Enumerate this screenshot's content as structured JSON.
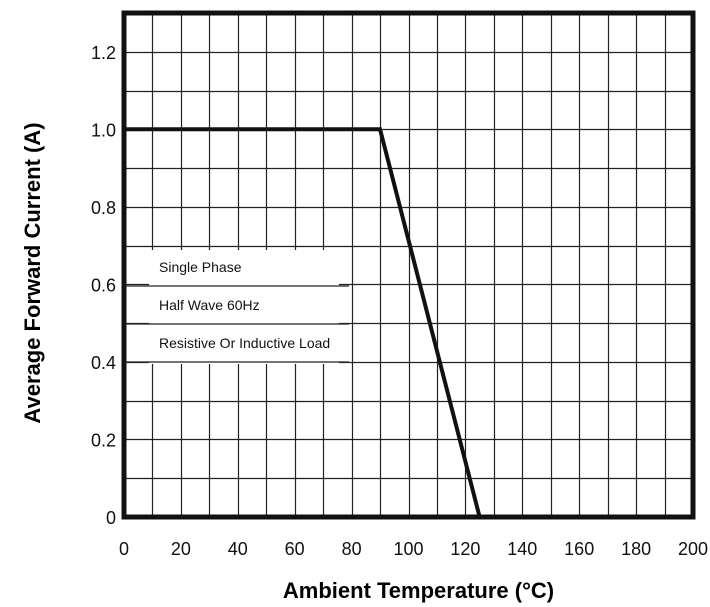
{
  "chart_data": {
    "type": "line",
    "title": "",
    "xlabel": "Ambient Temperature (°C)",
    "ylabel": "Average Forward Current (A)",
    "xlim": [
      0,
      200
    ],
    "ylim": [
      0,
      1.3
    ],
    "xticks": [
      0,
      20,
      40,
      60,
      80,
      100,
      120,
      140,
      160,
      180,
      200
    ],
    "xtick_labels": [
      "0",
      "20",
      "40",
      "60",
      "80",
      "100",
      "120",
      "140",
      "160",
      "180",
      "200"
    ],
    "yticks": [
      0,
      0.2,
      0.4,
      0.6,
      0.8,
      1.0,
      1.2
    ],
    "ytick_labels": [
      "0",
      "0.2",
      "0.4",
      "0.6",
      "0.8",
      "1.0",
      "1.2"
    ],
    "grid": true,
    "grid_x_step": 10,
    "grid_y_step": 0.1,
    "series": [
      {
        "x": [
          0,
          90,
          125
        ],
        "y": [
          1.0,
          1.0,
          0
        ]
      }
    ],
    "annotations": [
      "Single Phase",
      "Half Wave 60Hz",
      "Resistive Or Inductive Load"
    ]
  },
  "colors": {
    "line": "#111111",
    "frame": "#111111",
    "grid": "#222222"
  }
}
